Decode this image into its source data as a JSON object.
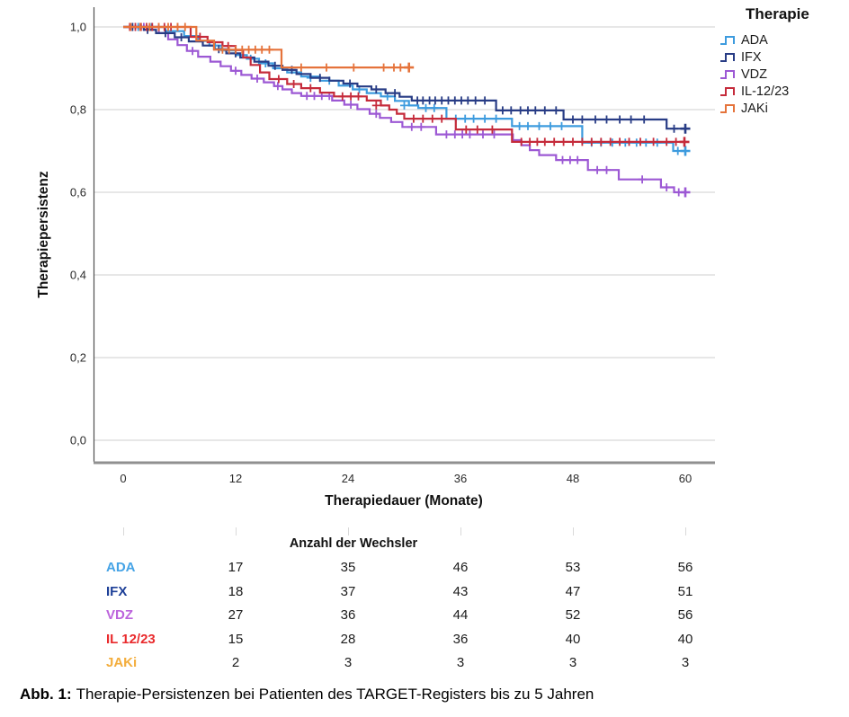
{
  "figure": {
    "caption_label": "Abb. 1:",
    "caption_text": "Therapie-Persistenzen bei Patienten des TARGET-Registers bis zu 5 Jahren"
  },
  "chart_data": {
    "type": "line",
    "variant": "kaplan-meier-step",
    "title": "",
    "xlabel": "Therapiedauer (Monate)",
    "ylabel": "Therapiepersistenz",
    "xlim": [
      0,
      60
    ],
    "ylim": [
      0.0,
      1.0
    ],
    "xticks": [
      0,
      12,
      24,
      36,
      48,
      60
    ],
    "yticks": [
      0.0,
      0.2,
      0.4,
      0.6,
      0.8,
      1.0
    ],
    "ytick_labels": [
      "0,0",
      "0,2",
      "0,4",
      "0,6",
      "0,8",
      "1,0"
    ],
    "grid": "horizontal",
    "grid_color": "#cfcfcf",
    "axis_color_y": "#4f4f4f",
    "axis_color_x": "#909090",
    "legend": {
      "title": "Therapie",
      "position": "top-right"
    },
    "draw_order": [
      2,
      0,
      1,
      3,
      4
    ],
    "series": [
      {
        "name": "ADA",
        "color": "#3D9BDE",
        "steps": [
          [
            0,
            1
          ],
          [
            4.5,
            0.99
          ],
          [
            6.5,
            0.978
          ],
          [
            8,
            0.966
          ],
          [
            9.2,
            0.955
          ],
          [
            10.5,
            0.943
          ],
          [
            12,
            0.932
          ],
          [
            13.2,
            0.923
          ],
          [
            14.5,
            0.912
          ],
          [
            16,
            0.9
          ],
          [
            17.5,
            0.89
          ],
          [
            19,
            0.88
          ],
          [
            21,
            0.87
          ],
          [
            23,
            0.858
          ],
          [
            24.5,
            0.849
          ],
          [
            26,
            0.84
          ],
          [
            27.5,
            0.832
          ],
          [
            29,
            0.821
          ],
          [
            30.5,
            0.81
          ],
          [
            31.5,
            0.804
          ],
          [
            34.5,
            0.778
          ],
          [
            41.5,
            0.76
          ],
          [
            49,
            0.72
          ],
          [
            58.7,
            0.7
          ],
          [
            60,
            0.7
          ]
        ],
        "censors": [
          [
            1.6,
            1
          ],
          [
            3,
            1
          ],
          [
            9.8,
            0.955
          ],
          [
            13.6,
            0.923
          ],
          [
            15.2,
            0.912
          ],
          [
            20,
            0.877
          ],
          [
            22,
            0.87
          ],
          [
            25.2,
            0.849
          ],
          [
            28.2,
            0.832
          ],
          [
            30,
            0.81
          ],
          [
            32.3,
            0.804
          ],
          [
            33.2,
            0.804
          ],
          [
            35.5,
            0.778
          ],
          [
            36.5,
            0.778
          ],
          [
            37.4,
            0.778
          ],
          [
            38.6,
            0.778
          ],
          [
            39.8,
            0.778
          ],
          [
            42.3,
            0.76
          ],
          [
            43.2,
            0.76
          ],
          [
            44.4,
            0.76
          ],
          [
            45.6,
            0.76
          ],
          [
            46.8,
            0.76
          ],
          [
            50,
            0.72
          ],
          [
            51,
            0.72
          ],
          [
            52.2,
            0.72
          ],
          [
            53.6,
            0.72
          ],
          [
            54.8,
            0.72
          ],
          [
            55.8,
            0.72
          ],
          [
            57,
            0.72
          ],
          [
            59.2,
            0.7
          ]
        ],
        "terminal": [
          60,
          0.7
        ]
      },
      {
        "name": "IFX",
        "color": "#283C85",
        "steps": [
          [
            0,
            1
          ],
          [
            2.2,
            0.993
          ],
          [
            3.5,
            0.985
          ],
          [
            5.5,
            0.975
          ],
          [
            7,
            0.965
          ],
          [
            8.5,
            0.955
          ],
          [
            9.7,
            0.946
          ],
          [
            11,
            0.936
          ],
          [
            12.5,
            0.926
          ],
          [
            14,
            0.916
          ],
          [
            15.5,
            0.906
          ],
          [
            17,
            0.896
          ],
          [
            18.5,
            0.886
          ],
          [
            20,
            0.877
          ],
          [
            22,
            0.87
          ],
          [
            23.5,
            0.863
          ],
          [
            25,
            0.856
          ],
          [
            26.5,
            0.849
          ],
          [
            28,
            0.84
          ],
          [
            29.5,
            0.831
          ],
          [
            30.8,
            0.822
          ],
          [
            39.8,
            0.798
          ],
          [
            47,
            0.776
          ],
          [
            58,
            0.754
          ],
          [
            60,
            0.754
          ]
        ],
        "censors": [
          [
            1,
            1
          ],
          [
            2.6,
            0.993
          ],
          [
            4.5,
            0.985
          ],
          [
            6.2,
            0.975
          ],
          [
            10.2,
            0.946
          ],
          [
            12,
            0.936
          ],
          [
            16.2,
            0.906
          ],
          [
            18,
            0.896
          ],
          [
            21,
            0.877
          ],
          [
            24.2,
            0.863
          ],
          [
            27,
            0.849
          ],
          [
            29,
            0.84
          ],
          [
            31.4,
            0.822
          ],
          [
            32,
            0.822
          ],
          [
            32.7,
            0.822
          ],
          [
            33.3,
            0.822
          ],
          [
            34,
            0.822
          ],
          [
            34.7,
            0.822
          ],
          [
            35.4,
            0.822
          ],
          [
            36.1,
            0.822
          ],
          [
            36.8,
            0.822
          ],
          [
            37.6,
            0.822
          ],
          [
            38.6,
            0.822
          ],
          [
            40.5,
            0.798
          ],
          [
            41.4,
            0.798
          ],
          [
            42.4,
            0.798
          ],
          [
            43.2,
            0.798
          ],
          [
            44,
            0.798
          ],
          [
            45,
            0.798
          ],
          [
            46.2,
            0.798
          ],
          [
            48,
            0.776
          ],
          [
            49,
            0.776
          ],
          [
            50.4,
            0.776
          ],
          [
            51.6,
            0.776
          ],
          [
            53,
            0.776
          ],
          [
            54.2,
            0.776
          ],
          [
            55.6,
            0.776
          ],
          [
            58.8,
            0.754
          ]
        ],
        "terminal": [
          60,
          0.754
        ]
      },
      {
        "name": "VDZ",
        "color": "#9C58D4",
        "steps": [
          [
            0,
            1
          ],
          [
            3.8,
            0.985
          ],
          [
            4.8,
            0.97
          ],
          [
            5.8,
            0.956
          ],
          [
            6.8,
            0.942
          ],
          [
            8,
            0.928
          ],
          [
            9.3,
            0.916
          ],
          [
            10.4,
            0.905
          ],
          [
            11.5,
            0.894
          ],
          [
            12.6,
            0.884
          ],
          [
            13.7,
            0.875
          ],
          [
            15,
            0.866
          ],
          [
            16.1,
            0.857
          ],
          [
            17,
            0.849
          ],
          [
            18,
            0.84
          ],
          [
            19,
            0.833
          ],
          [
            22.3,
            0.822
          ],
          [
            23.6,
            0.812
          ],
          [
            25,
            0.801
          ],
          [
            26.3,
            0.79
          ],
          [
            27.4,
            0.78
          ],
          [
            28.6,
            0.77
          ],
          [
            29.8,
            0.758
          ],
          [
            33.4,
            0.74
          ],
          [
            41.6,
            0.726
          ],
          [
            42.5,
            0.714
          ],
          [
            43.4,
            0.702
          ],
          [
            44.4,
            0.69
          ],
          [
            46.2,
            0.678
          ],
          [
            49.6,
            0.654
          ],
          [
            52.9,
            0.631
          ],
          [
            57.4,
            0.612
          ],
          [
            58.8,
            0.6
          ],
          [
            60,
            0.6
          ]
        ],
        "censors": [
          [
            2.2,
            1
          ],
          [
            7.4,
            0.942
          ],
          [
            12,
            0.894
          ],
          [
            14.3,
            0.875
          ],
          [
            16.5,
            0.857
          ],
          [
            19.6,
            0.833
          ],
          [
            20.4,
            0.833
          ],
          [
            21.2,
            0.833
          ],
          [
            22,
            0.833
          ],
          [
            24.3,
            0.812
          ],
          [
            27,
            0.79
          ],
          [
            30.8,
            0.758
          ],
          [
            31.8,
            0.758
          ],
          [
            34.5,
            0.74
          ],
          [
            35.4,
            0.74
          ],
          [
            36.2,
            0.74
          ],
          [
            37,
            0.74
          ],
          [
            38.4,
            0.74
          ],
          [
            39.6,
            0.74
          ],
          [
            46.9,
            0.678
          ],
          [
            47.7,
            0.678
          ],
          [
            48.5,
            0.678
          ],
          [
            50.6,
            0.654
          ],
          [
            51.6,
            0.654
          ],
          [
            55.4,
            0.631
          ],
          [
            58,
            0.612
          ],
          [
            59.3,
            0.6
          ]
        ],
        "terminal": [
          60,
          0.6
        ]
      },
      {
        "name": "IL-12/23",
        "color": "#C52B3B",
        "steps": [
          [
            0,
            1
          ],
          [
            7.2,
            0.976
          ],
          [
            9,
            0.963
          ],
          [
            10.6,
            0.954
          ],
          [
            12,
            0.944
          ],
          [
            12.8,
            0.926
          ],
          [
            13.6,
            0.908
          ],
          [
            14.6,
            0.89
          ],
          [
            15.6,
            0.874
          ],
          [
            17.5,
            0.862
          ],
          [
            19,
            0.852
          ],
          [
            21,
            0.841
          ],
          [
            22.5,
            0.832
          ],
          [
            26,
            0.822
          ],
          [
            27.5,
            0.81
          ],
          [
            28.4,
            0.8
          ],
          [
            29.2,
            0.79
          ],
          [
            30,
            0.778
          ],
          [
            35.5,
            0.752
          ],
          [
            41.5,
            0.722
          ],
          [
            60,
            0.722
          ]
        ],
        "censors": [
          [
            0.7,
            1
          ],
          [
            1.3,
            1
          ],
          [
            1.9,
            1
          ],
          [
            2.5,
            1
          ],
          [
            3.1,
            1
          ],
          [
            3.8,
            1
          ],
          [
            4.4,
            1
          ],
          [
            5.1,
            1
          ],
          [
            5.8,
            1
          ],
          [
            8.2,
            0.976
          ],
          [
            11.2,
            0.954
          ],
          [
            16.6,
            0.874
          ],
          [
            18.2,
            0.862
          ],
          [
            20,
            0.852
          ],
          [
            23.4,
            0.832
          ],
          [
            24.3,
            0.832
          ],
          [
            25.1,
            0.832
          ],
          [
            27,
            0.81
          ],
          [
            31,
            0.778
          ],
          [
            32,
            0.778
          ],
          [
            33,
            0.778
          ],
          [
            34,
            0.778
          ],
          [
            36.6,
            0.752
          ],
          [
            37.8,
            0.752
          ],
          [
            39.4,
            0.752
          ],
          [
            42.5,
            0.722
          ],
          [
            43.4,
            0.722
          ],
          [
            44.2,
            0.722
          ],
          [
            45,
            0.722
          ],
          [
            46,
            0.722
          ],
          [
            47,
            0.722
          ],
          [
            48,
            0.722
          ],
          [
            49,
            0.722
          ],
          [
            50,
            0.722
          ],
          [
            51,
            0.722
          ],
          [
            52,
            0.722
          ],
          [
            53,
            0.722
          ],
          [
            54,
            0.722
          ],
          [
            55.2,
            0.722
          ],
          [
            56.6,
            0.722
          ],
          [
            58,
            0.722
          ],
          [
            59,
            0.722
          ]
        ],
        "terminal": [
          59.9,
          0.722
        ]
      },
      {
        "name": "JAKi",
        "color": "#E5733B",
        "steps": [
          [
            0,
            1
          ],
          [
            7.8,
            0.967
          ],
          [
            9.7,
            0.945
          ],
          [
            16.9,
            0.902
          ],
          [
            30.5,
            0.902
          ]
        ],
        "censors": [
          [
            0.8,
            1
          ],
          [
            1.8,
            1
          ],
          [
            2.8,
            1
          ],
          [
            3.8,
            1
          ],
          [
            4.8,
            1
          ],
          [
            5.8,
            1
          ],
          [
            6.6,
            1
          ],
          [
            10.6,
            0.945
          ],
          [
            11.3,
            0.945
          ],
          [
            12,
            0.945
          ],
          [
            12.7,
            0.945
          ],
          [
            13.4,
            0.945
          ],
          [
            14.1,
            0.945
          ],
          [
            14.8,
            0.945
          ],
          [
            15.6,
            0.945
          ],
          [
            19,
            0.902
          ],
          [
            21.7,
            0.902
          ],
          [
            24.6,
            0.902
          ],
          [
            27.8,
            0.902
          ],
          [
            28.9,
            0.902
          ],
          [
            29.6,
            0.902
          ]
        ],
        "terminal": [
          30.5,
          0.902
        ]
      }
    ],
    "risk_table": {
      "title": "Anzahl der Wechsler",
      "columns_months": [
        12,
        24,
        36,
        48,
        60
      ],
      "rows": [
        {
          "label": "ADA",
          "color": "#45A3E6",
          "values": [
            17,
            35,
            46,
            53,
            56
          ]
        },
        {
          "label": "IFX",
          "color": "#1D3F97",
          "values": [
            18,
            37,
            43,
            47,
            51
          ]
        },
        {
          "label": "VDZ",
          "color": "#BC64DC",
          "values": [
            27,
            36,
            44,
            52,
            56
          ]
        },
        {
          "label": "IL 12/23",
          "color": "#E92A2C",
          "values": [
            15,
            28,
            36,
            40,
            40
          ]
        },
        {
          "label": "JAKi",
          "color": "#F3AD3C",
          "values": [
            2,
            3,
            3,
            3,
            3
          ]
        }
      ]
    }
  }
}
